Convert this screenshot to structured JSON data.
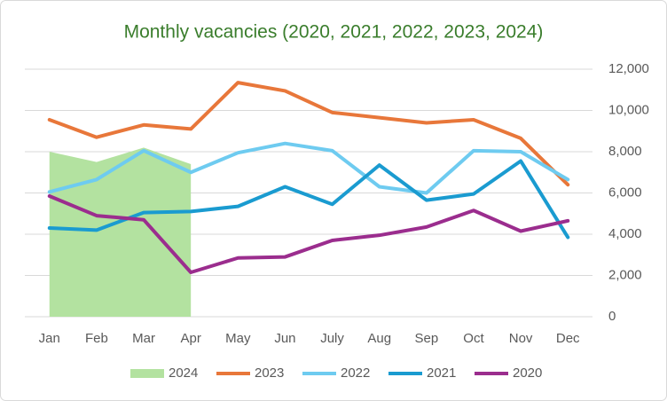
{
  "chart_data": {
    "type": "line",
    "title": "Monthly vacancies (2020, 2021, 2022, 2023, 2024)",
    "categories": [
      "Jan",
      "Feb",
      "Mar",
      "Apr",
      "May",
      "Jun",
      "July",
      "Aug",
      "Sep",
      "Oct",
      "Nov",
      "Dec"
    ],
    "series": [
      {
        "name": "2024",
        "type": "area",
        "color": "#b3e2a0",
        "values": [
          8000,
          7500,
          8200,
          7400,
          null,
          null,
          null,
          null,
          null,
          null,
          null,
          null
        ]
      },
      {
        "name": "2023",
        "type": "line",
        "color": "#e8773a",
        "values": [
          9550,
          8700,
          9300,
          9100,
          11350,
          10950,
          9900,
          9650,
          9400,
          9550,
          8650,
          6400
        ]
      },
      {
        "name": "2022",
        "type": "line",
        "color": "#6ecbf0",
        "values": [
          6050,
          6650,
          8050,
          7000,
          7950,
          8400,
          8050,
          6300,
          6000,
          8050,
          8000,
          6650
        ]
      },
      {
        "name": "2021",
        "type": "line",
        "color": "#1a9bd0",
        "values": [
          4300,
          4200,
          5050,
          5100,
          5350,
          6300,
          5450,
          7350,
          5650,
          5950,
          7550,
          3850
        ]
      },
      {
        "name": "2020",
        "type": "line",
        "color": "#9b2d8e",
        "values": [
          5850,
          4900,
          4700,
          2150,
          2850,
          2900,
          3700,
          3950,
          4350,
          5150,
          4150,
          4650
        ]
      }
    ],
    "ylim": [
      0,
      12000
    ],
    "yticks": [
      0,
      {
        "value": 2000,
        "label": "2,000"
      },
      {
        "value": 4000,
        "label": "4,000"
      },
      {
        "value": 6000,
        "label": "6,000"
      },
      {
        "value": 8000,
        "label": "8,000"
      },
      {
        "value": 10000,
        "label": "10,000"
      },
      {
        "value": 12000,
        "label": "12,000"
      }
    ],
    "grid": true,
    "y_axis_side": "right",
    "legend": "bottom"
  }
}
